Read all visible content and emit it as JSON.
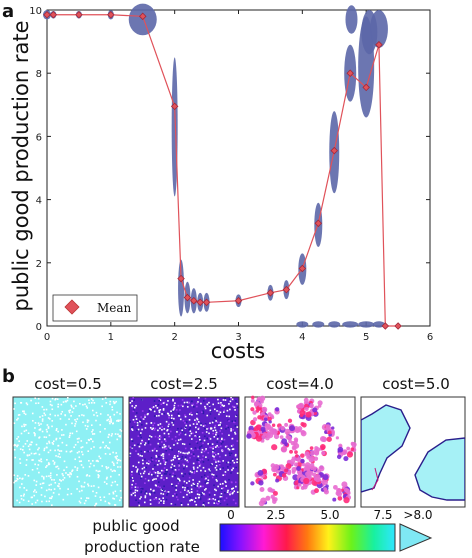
{
  "chart_data": [
    {
      "panel": "a",
      "type": "line",
      "xlabel": "costs",
      "ylabel": "public good production rate",
      "xlim": [
        0,
        6
      ],
      "ylim": [
        0,
        10
      ],
      "xticks": [
        0,
        1,
        2,
        3,
        4,
        5,
        6
      ],
      "yticks": [
        0,
        2,
        4,
        6,
        8,
        10
      ],
      "grid": false,
      "legend": {
        "position": "bottom-left",
        "entries": [
          "Mean"
        ]
      },
      "series": [
        {
          "name": "Mean",
          "color": "#e0525a",
          "x": [
            0.0,
            0.1,
            0.5,
            1.0,
            1.5,
            2.0,
            2.1,
            2.2,
            2.3,
            2.4,
            2.5,
            3.0,
            3.5,
            3.75,
            4.0,
            4.25,
            4.5,
            4.75,
            5.0,
            5.2,
            5.3,
            5.5
          ],
          "values": [
            9.85,
            9.85,
            9.85,
            9.85,
            9.8,
            6.95,
            1.5,
            0.9,
            0.8,
            0.75,
            0.75,
            0.8,
            1.05,
            1.15,
            1.82,
            3.25,
            5.55,
            8.0,
            7.55,
            8.9,
            0.0,
            0.0
          ]
        }
      ],
      "violin_color": "#5c67a8"
    },
    {
      "panel": "b",
      "type": "heatmap",
      "snapshots": [
        "cost=0.5",
        "cost=2.5",
        "cost=4.0",
        "cost=5.0"
      ],
      "colorbar": {
        "label_line1": "public good",
        "label_line2": "production rate",
        "ticks": [
          "0",
          "2.5",
          "5.0",
          "7.5",
          ">8.0"
        ],
        "min": 0,
        "max": 8
      }
    }
  ]
}
